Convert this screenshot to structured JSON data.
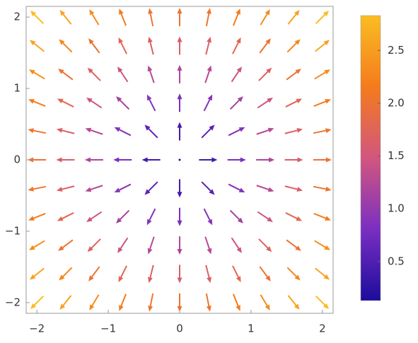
{
  "chart_data": {
    "type": "vector",
    "x": [
      -2,
      -1.6,
      -1.2,
      -0.8,
      -0.4,
      0,
      0.4,
      0.8,
      1.2,
      1.6,
      2
    ],
    "y": [
      -2,
      -1.6,
      -1.2,
      -0.8,
      -0.4,
      0,
      0.4,
      0.8,
      1.2,
      1.6,
      2
    ],
    "u": [
      [
        -2,
        -1.6,
        -1.2,
        -0.8,
        -0.4,
        0,
        0.4,
        0.8,
        1.2,
        1.6,
        2
      ],
      [
        -2,
        -1.6,
        -1.2,
        -0.8,
        -0.4,
        0,
        0.4,
        0.8,
        1.2,
        1.6,
        2
      ],
      [
        -2,
        -1.6,
        -1.2,
        -0.8,
        -0.4,
        0,
        0.4,
        0.8,
        1.2,
        1.6,
        2
      ],
      [
        -2,
        -1.6,
        -1.2,
        -0.8,
        -0.4,
        0,
        0.4,
        0.8,
        1.2,
        1.6,
        2
      ],
      [
        -2,
        -1.6,
        -1.2,
        -0.8,
        -0.4,
        0,
        0.4,
        0.8,
        1.2,
        1.6,
        2
      ],
      [
        -2,
        -1.6,
        -1.2,
        -0.8,
        -0.4,
        0,
        0.4,
        0.8,
        1.2,
        1.6,
        2
      ],
      [
        -2,
        -1.6,
        -1.2,
        -0.8,
        -0.4,
        0,
        0.4,
        0.8,
        1.2,
        1.6,
        2
      ],
      [
        -2,
        -1.6,
        -1.2,
        -0.8,
        -0.4,
        0,
        0.4,
        0.8,
        1.2,
        1.6,
        2
      ],
      [
        -2,
        -1.6,
        -1.2,
        -0.8,
        -0.4,
        0,
        0.4,
        0.8,
        1.2,
        1.6,
        2
      ],
      [
        -2,
        -1.6,
        -1.2,
        -0.8,
        -0.4,
        0,
        0.4,
        0.8,
        1.2,
        1.6,
        2
      ],
      [
        -2,
        -1.6,
        -1.2,
        -0.8,
        -0.4,
        0,
        0.4,
        0.8,
        1.2,
        1.6,
        2
      ]
    ],
    "v": [
      [
        -2,
        -2,
        -2,
        -2,
        -2,
        -2,
        -2,
        -2,
        -2,
        -2,
        -2
      ],
      [
        -1.6,
        -1.6,
        -1.6,
        -1.6,
        -1.6,
        -1.6,
        -1.6,
        -1.6,
        -1.6,
        -1.6,
        -1.6
      ],
      [
        -1.2,
        -1.2,
        -1.2,
        -1.2,
        -1.2,
        -1.2,
        -1.2,
        -1.2,
        -1.2,
        -1.2,
        -1.2
      ],
      [
        -0.8,
        -0.8,
        -0.8,
        -0.8,
        -0.8,
        -0.8,
        -0.8,
        -0.8,
        -0.8,
        -0.8,
        -0.8
      ],
      [
        -0.4,
        -0.4,
        -0.4,
        -0.4,
        -0.4,
        -0.4,
        -0.4,
        -0.4,
        -0.4,
        -0.4,
        -0.4
      ],
      [
        0,
        0,
        0,
        0,
        0,
        0,
        0,
        0,
        0,
        0,
        0
      ],
      [
        0.4,
        0.4,
        0.4,
        0.4,
        0.4,
        0.4,
        0.4,
        0.4,
        0.4,
        0.4,
        0.4
      ],
      [
        0.8,
        0.8,
        0.8,
        0.8,
        0.8,
        0.8,
        0.8,
        0.8,
        0.8,
        0.8,
        0.8
      ],
      [
        1.2,
        1.2,
        1.2,
        1.2,
        1.2,
        1.2,
        1.2,
        1.2,
        1.2,
        1.2,
        1.2
      ],
      [
        1.6,
        1.6,
        1.6,
        1.6,
        1.6,
        1.6,
        1.6,
        1.6,
        1.6,
        1.6,
        1.6
      ],
      [
        2,
        2,
        2,
        2,
        2,
        2,
        2,
        2,
        2,
        2,
        2
      ]
    ],
    "xlim": [
      -2.15,
      2.15
    ],
    "ylim": [
      -2.15,
      2.15
    ],
    "xticks": [
      {
        "value": -2,
        "label": "−2"
      },
      {
        "value": -1,
        "label": "−1"
      },
      0,
      1,
      2
    ],
    "yticks": [
      {
        "value": -2,
        "label": "−2"
      },
      {
        "value": -1,
        "label": "−1"
      },
      0,
      1,
      2
    ],
    "colorbar": {
      "lim": [
        0.13,
        2.83
      ],
      "ticks": [
        0.5,
        {
          "value": 1,
          "label": "1.0"
        },
        1.5,
        {
          "value": 2,
          "label": "2.0"
        },
        2.5
      ],
      "colors": [
        "#1c0c9c",
        "#7a2fc2",
        "#d2567e",
        "#f47b1d",
        "#fabd22"
      ]
    }
  }
}
